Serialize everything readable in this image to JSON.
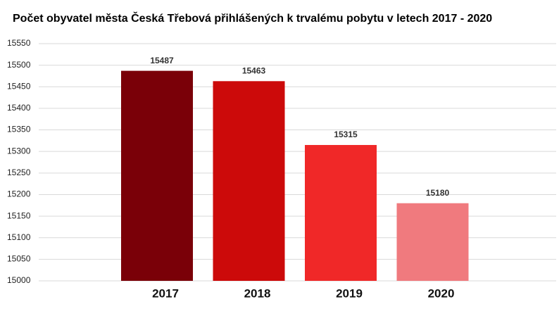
{
  "chart_data": {
    "type": "bar",
    "title": "Počet obyvatel města Česká Třebová přihlášených k trvalému pobytu v letech 2017 - 2020",
    "categories": [
      "2017",
      "2018",
      "2019",
      "2020"
    ],
    "values": [
      15487,
      15463,
      15315,
      15180
    ],
    "colors": [
      "#7a0008",
      "#cc0a0a",
      "#f02828",
      "#f07a7e"
    ],
    "ylim": [
      15000,
      15550
    ],
    "yticks": [
      15000,
      15050,
      15100,
      15150,
      15200,
      15250,
      15300,
      15350,
      15400,
      15450,
      15500,
      15550
    ],
    "grid": true
  }
}
